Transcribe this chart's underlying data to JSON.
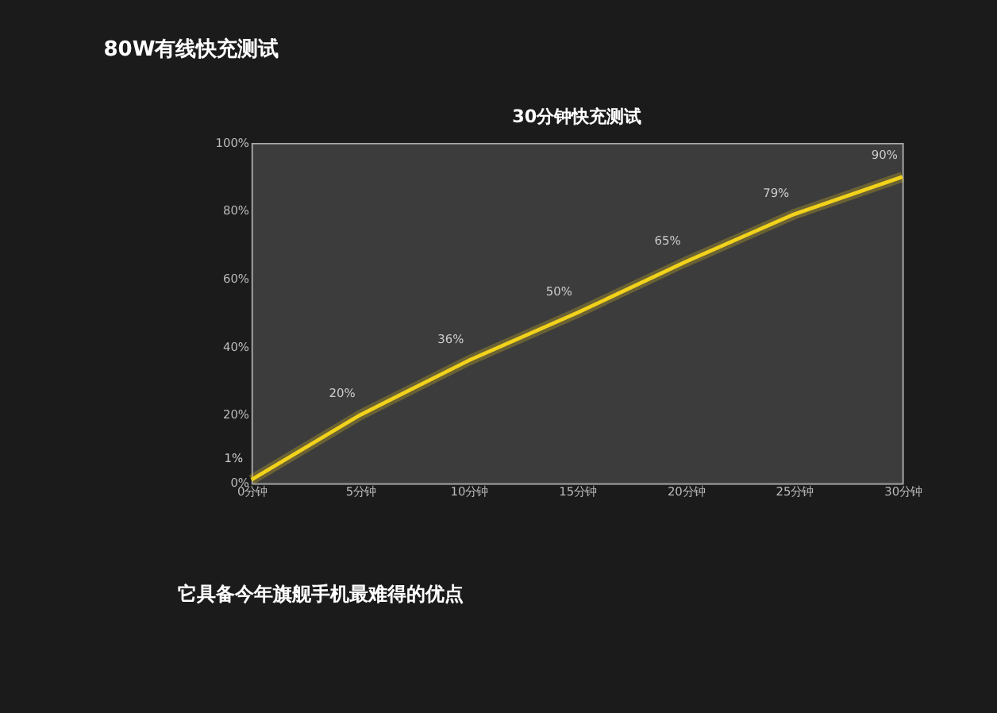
{
  "chart_data": {
    "type": "line",
    "title": "80W有线快充测试",
    "subtitle": "30分钟快充测试",
    "categories": [
      "0分钟",
      "5分钟",
      "10分钟",
      "15分钟",
      "20分钟",
      "25分钟",
      "30分钟"
    ],
    "series": [
      {
        "color": "#f2d21b",
        "values": [
          1,
          20,
          36,
          50,
          65,
          79,
          90
        ],
        "value_labels": [
          "1%",
          "20%",
          "36%",
          "50%",
          "65%",
          "79%",
          "90%"
        ]
      }
    ],
    "ylim": [
      0,
      100
    ],
    "yticks": [
      {
        "value": 0,
        "label": "0%"
      },
      {
        "value": 20,
        "label": "20%"
      },
      {
        "value": 40,
        "label": "40%"
      },
      {
        "value": 60,
        "label": "60%"
      },
      {
        "value": 80,
        "label": "80%"
      },
      {
        "value": 100,
        "label": "100%"
      }
    ],
    "grid": false,
    "marker": "none",
    "line_style": "solid",
    "annotations": [
      "它具备今年旗舰手机最难得的优点"
    ]
  }
}
